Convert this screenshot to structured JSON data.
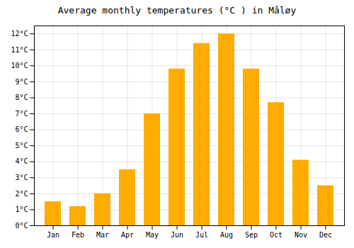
{
  "chart_data": {
    "type": "bar",
    "title": "Average monthly temperatures (°C ) in Måløy",
    "categories": [
      "Jan",
      "Feb",
      "Mar",
      "Apr",
      "May",
      "Jun",
      "Jul",
      "Aug",
      "Sep",
      "Oct",
      "Nov",
      "Dec"
    ],
    "values": [
      1.5,
      1.2,
      2.0,
      3.5,
      7.0,
      9.8,
      11.4,
      12.0,
      9.8,
      7.7,
      4.1,
      2.5
    ],
    "color": "#FFAB00",
    "ylim": [
      0,
      12.5
    ],
    "yticks": [
      {
        "value": 0,
        "label": "0°C"
      },
      {
        "value": 1,
        "label": "1°C"
      },
      {
        "value": 2,
        "label": "2°C"
      },
      {
        "value": 3,
        "label": "3°C"
      },
      {
        "value": 4,
        "label": "4°C"
      },
      {
        "value": 5,
        "label": "5°C"
      },
      {
        "value": 6,
        "label": "6°C"
      },
      {
        "value": 7,
        "label": "7°C"
      },
      {
        "value": 8,
        "label": "8°C"
      },
      {
        "value": 9,
        "label": "9°C"
      },
      {
        "value": 10,
        "label": "10°C"
      },
      {
        "value": 11,
        "label": "11°C"
      },
      {
        "value": 12,
        "label": "12°C"
      }
    ],
    "grid": true
  }
}
